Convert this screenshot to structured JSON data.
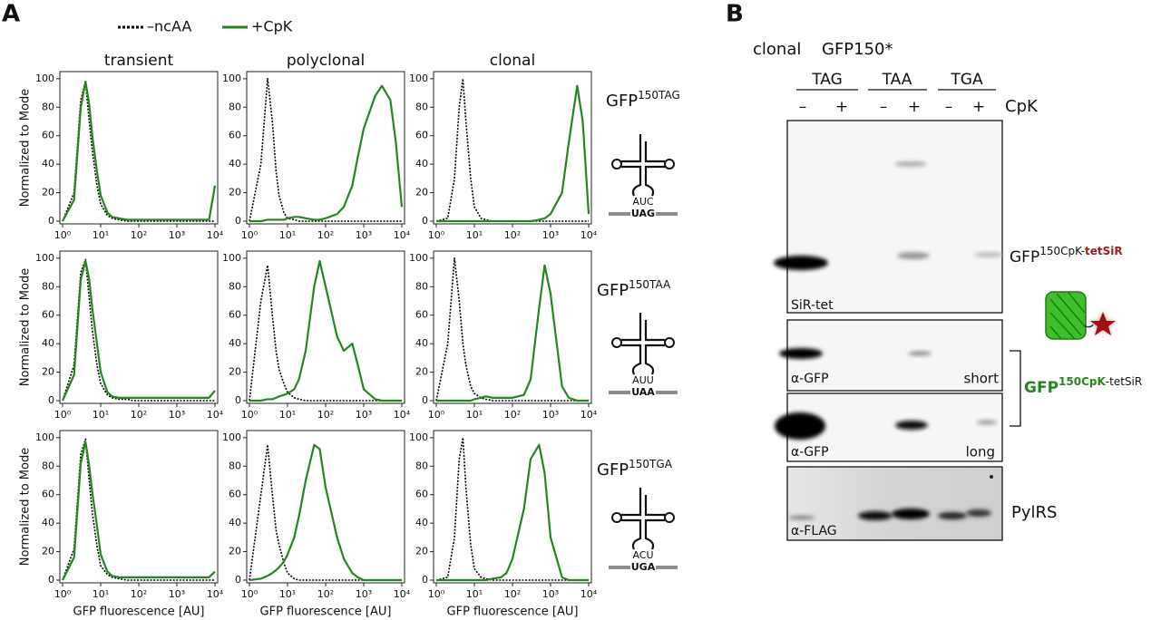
{
  "panel_a": {
    "label": "A",
    "rows": [
      {
        "gene": "GFP",
        "mutation": "150TAG",
        "anticodon": "AUC",
        "codon": "UAG"
      },
      {
        "gene": "GFP",
        "mutation": "150TAA",
        "anticodon": "AUU",
        "codon": "UAA"
      },
      {
        "gene": "GFP",
        "mutation": "150TGA",
        "anticodon": "ACU",
        "codon": "UGA"
      }
    ]
  },
  "panel_b": {
    "label": "B",
    "clone": "clonal",
    "construct": "GFP150*",
    "codons": [
      "TAG",
      "TAA",
      "TGA"
    ],
    "lanes": [
      "–",
      "+",
      "–",
      "+",
      "–",
      "+"
    ],
    "treatment": "CpK",
    "blots": [
      {
        "stain": "SiR-tet"
      },
      {
        "stain": "α-GFP",
        "exposure": "short"
      },
      {
        "stain": "α-GFP",
        "exposure": "long"
      },
      {
        "stain": "α-FLAG"
      }
    ],
    "product": {
      "name": "GFP",
      "superscript": "150CpK-",
      "highlight": "tetSiR"
    },
    "gfp_label": {
      "name": "GFP",
      "superscript": "150CpK",
      "suffix": "-tetSiR"
    },
    "pylrs": "PylRS"
  },
  "chart_data": [
    {
      "type": "line",
      "title": "transient",
      "ylabel": "Normalized to Mode",
      "xscale": "log",
      "x": [
        1,
        2,
        3,
        4,
        5,
        6,
        8,
        10,
        15,
        20,
        30,
        50,
        70,
        100,
        200,
        300,
        500,
        700,
        1000,
        2000,
        3000,
        5000,
        7000,
        10000
      ],
      "xlim": [
        1,
        10000
      ],
      "ylim": [
        0,
        105
      ],
      "xticks": [
        {
          "value": 1,
          "label": "10⁰"
        },
        {
          "value": 10,
          "label": "10¹"
        },
        {
          "value": 100,
          "label": "10²"
        },
        {
          "value": 1000,
          "label": "10³"
        },
        {
          "value": 10000,
          "label": "10⁴"
        }
      ],
      "yticks": [
        0,
        20,
        40,
        60,
        80,
        100
      ],
      "series": [
        {
          "name": "–ncAA",
          "color": "#000000",
          "style": "dotted",
          "values": [
            0,
            20,
            85,
            98,
            70,
            50,
            25,
            12,
            4,
            2,
            1,
            0,
            0,
            0,
            0,
            0,
            0,
            0,
            0,
            0,
            0,
            0,
            0,
            0
          ]
        },
        {
          "name": "+CpK",
          "color": "#25861f",
          "style": "solid",
          "values": [
            0,
            15,
            80,
            98,
            82,
            60,
            35,
            18,
            6,
            3,
            2,
            1,
            1,
            1,
            1,
            1,
            1,
            1,
            1,
            1,
            1,
            1,
            1,
            25
          ]
        }
      ]
    },
    {
      "type": "line",
      "title": "polyclonal",
      "xscale": "log",
      "x": [
        1,
        2,
        3,
        4,
        5,
        6,
        8,
        10,
        15,
        20,
        30,
        50,
        70,
        100,
        200,
        300,
        500,
        700,
        1000,
        2000,
        3000,
        5000,
        7000,
        10000
      ],
      "xlim": [
        1,
        10000
      ],
      "ylim": [
        0,
        105
      ],
      "xticks": [
        {
          "value": 1,
          "label": "10⁰"
        },
        {
          "value": 10,
          "label": "10¹"
        },
        {
          "value": 100,
          "label": "10²"
        },
        {
          "value": 1000,
          "label": "10³"
        },
        {
          "value": 10000,
          "label": "10⁴"
        }
      ],
      "yticks": [
        0,
        20,
        40,
        60,
        80,
        100
      ],
      "series": [
        {
          "color": "#000000",
          "style": "dotted",
          "values": [
            0,
            40,
            100,
            70,
            35,
            18,
            6,
            2,
            1,
            0,
            0,
            0,
            0,
            0,
            0,
            0,
            0,
            0,
            0,
            0,
            0,
            0,
            0,
            0
          ]
        },
        {
          "color": "#25861f",
          "style": "solid",
          "values": [
            0,
            0,
            1,
            1,
            1,
            1,
            1,
            2,
            3,
            3,
            2,
            1,
            1,
            2,
            5,
            10,
            25,
            45,
            65,
            88,
            95,
            85,
            55,
            10
          ]
        }
      ]
    },
    {
      "type": "line",
      "title": "clonal",
      "xscale": "log",
      "x": [
        1,
        2,
        3,
        4,
        5,
        6,
        8,
        10,
        15,
        20,
        30,
        50,
        70,
        100,
        200,
        300,
        500,
        700,
        1000,
        2000,
        3000,
        5000,
        7000,
        10000
      ],
      "xlim": [
        1,
        10000
      ],
      "ylim": [
        0,
        105
      ],
      "xticks": [
        {
          "value": 1,
          "label": "10⁰"
        },
        {
          "value": 10,
          "label": "10¹"
        },
        {
          "value": 100,
          "label": "10²"
        },
        {
          "value": 1000,
          "label": "10³"
        },
        {
          "value": 10000,
          "label": "10⁴"
        }
      ],
      "yticks": [
        0,
        20,
        40,
        60,
        80,
        100
      ],
      "series": [
        {
          "color": "#000000",
          "style": "dotted",
          "values": [
            0,
            2,
            30,
            80,
            100,
            70,
            30,
            10,
            2,
            1,
            0,
            0,
            0,
            0,
            0,
            0,
            0,
            0,
            0,
            0,
            0,
            0,
            0,
            0
          ]
        },
        {
          "color": "#25861f",
          "style": "solid",
          "values": [
            0,
            0,
            0,
            0,
            0,
            0,
            0,
            0,
            0,
            0,
            0,
            0,
            0,
            0,
            0,
            0,
            1,
            2,
            5,
            20,
            55,
            95,
            70,
            5
          ]
        }
      ]
    },
    {
      "type": "line",
      "ylabel": "Normalized to Mode",
      "xscale": "log",
      "x": [
        1,
        2,
        3,
        4,
        5,
        6,
        8,
        10,
        15,
        20,
        30,
        50,
        70,
        100,
        200,
        300,
        500,
        700,
        1000,
        2000,
        3000,
        5000,
        7000,
        10000
      ],
      "xlim": [
        1,
        10000
      ],
      "ylim": [
        0,
        105
      ],
      "xticks": [
        {
          "value": 1,
          "label": "10⁰"
        },
        {
          "value": 10,
          "label": "10¹"
        },
        {
          "value": 100,
          "label": "10²"
        },
        {
          "value": 1000,
          "label": "10³"
        },
        {
          "value": 10000,
          "label": "10⁴"
        }
      ],
      "yticks": [
        0,
        20,
        40,
        60,
        80,
        100
      ],
      "series": [
        {
          "color": "#000000",
          "style": "dotted",
          "values": [
            0,
            25,
            90,
            99,
            72,
            50,
            25,
            12,
            4,
            2,
            1,
            1,
            0,
            0,
            0,
            0,
            0,
            0,
            0,
            0,
            0,
            0,
            0,
            0
          ]
        },
        {
          "color": "#25861f",
          "style": "solid",
          "values": [
            0,
            18,
            85,
            98,
            85,
            65,
            40,
            20,
            6,
            3,
            2,
            2,
            2,
            2,
            2,
            2,
            2,
            2,
            2,
            2,
            2,
            2,
            2,
            7
          ]
        }
      ]
    },
    {
      "type": "line",
      "xscale": "log",
      "x": [
        1,
        2,
        3,
        4,
        5,
        6,
        8,
        10,
        15,
        20,
        30,
        50,
        70,
        100,
        200,
        300,
        500,
        700,
        1000,
        2000,
        3000,
        5000,
        7000,
        10000
      ],
      "xlim": [
        1,
        10000
      ],
      "ylim": [
        0,
        105
      ],
      "xticks": [
        {
          "value": 1,
          "label": "10⁰"
        },
        {
          "value": 10,
          "label": "10¹"
        },
        {
          "value": 100,
          "label": "10²"
        },
        {
          "value": 1000,
          "label": "10³"
        },
        {
          "value": 10000,
          "label": "10⁴"
        }
      ],
      "yticks": [
        0,
        20,
        40,
        60,
        80,
        100
      ],
      "series": [
        {
          "color": "#000000",
          "style": "dotted",
          "values": [
            0,
            70,
            95,
            60,
            35,
            22,
            12,
            6,
            2,
            1,
            0,
            0,
            0,
            0,
            0,
            0,
            0,
            0,
            0,
            0,
            0,
            0,
            0,
            0
          ]
        },
        {
          "color": "#25861f",
          "style": "solid",
          "values": [
            0,
            0,
            1,
            1,
            2,
            3,
            4,
            5,
            8,
            15,
            35,
            80,
            98,
            80,
            45,
            35,
            40,
            25,
            8,
            1,
            0,
            0,
            0,
            0
          ]
        }
      ]
    },
    {
      "type": "line",
      "xscale": "log",
      "x": [
        1,
        2,
        3,
        4,
        5,
        6,
        8,
        10,
        15,
        20,
        30,
        50,
        70,
        100,
        200,
        300,
        500,
        700,
        1000,
        2000,
        3000,
        5000,
        7000,
        10000
      ],
      "xlim": [
        1,
        10000
      ],
      "ylim": [
        0,
        105
      ],
      "xticks": [
        {
          "value": 1,
          "label": "10⁰"
        },
        {
          "value": 10,
          "label": "10¹"
        },
        {
          "value": 100,
          "label": "10²"
        },
        {
          "value": 1000,
          "label": "10³"
        },
        {
          "value": 10000,
          "label": "10⁴"
        }
      ],
      "yticks": [
        0,
        20,
        40,
        60,
        80,
        100
      ],
      "series": [
        {
          "color": "#000000",
          "style": "dotted",
          "values": [
            0,
            40,
            100,
            70,
            40,
            25,
            10,
            5,
            2,
            1,
            0,
            0,
            0,
            0,
            0,
            0,
            0,
            0,
            0,
            0,
            0,
            0,
            0,
            0
          ]
        },
        {
          "color": "#25861f",
          "style": "solid",
          "values": [
            0,
            0,
            0,
            0,
            0,
            0,
            0,
            1,
            2,
            3,
            2,
            2,
            2,
            2,
            4,
            15,
            65,
            95,
            75,
            10,
            2,
            0,
            0,
            0
          ]
        }
      ]
    },
    {
      "type": "line",
      "ylabel": "Normalized to Mode",
      "xlabel": "GFP fluorescence  [AU]",
      "xscale": "log",
      "x": [
        1,
        2,
        3,
        4,
        5,
        6,
        8,
        10,
        15,
        20,
        30,
        50,
        70,
        100,
        200,
        300,
        500,
        700,
        1000,
        2000,
        3000,
        5000,
        7000,
        10000
      ],
      "xlim": [
        1,
        10000
      ],
      "ylim": [
        0,
        105
      ],
      "xticks": [
        {
          "value": 1,
          "label": "10⁰"
        },
        {
          "value": 10,
          "label": "10¹"
        },
        {
          "value": 100,
          "label": "10²"
        },
        {
          "value": 1000,
          "label": "10³"
        },
        {
          "value": 10000,
          "label": "10⁴"
        }
      ],
      "yticks": [
        0,
        20,
        40,
        60,
        80,
        100
      ],
      "series": [
        {
          "color": "#000000",
          "style": "dotted",
          "values": [
            0,
            22,
            88,
            99,
            70,
            48,
            24,
            10,
            4,
            2,
            1,
            0,
            0,
            0,
            0,
            0,
            0,
            0,
            0,
            0,
            0,
            0,
            0,
            0
          ]
        },
        {
          "color": "#25861f",
          "style": "solid",
          "values": [
            0,
            16,
            82,
            97,
            80,
            62,
            38,
            18,
            6,
            3,
            2,
            2,
            2,
            2,
            2,
            2,
            2,
            2,
            2,
            2,
            2,
            2,
            2,
            6
          ]
        }
      ]
    },
    {
      "type": "line",
      "xlabel": "GFP fluorescence  [AU]",
      "xscale": "log",
      "x": [
        1,
        2,
        3,
        4,
        5,
        6,
        8,
        10,
        15,
        20,
        30,
        50,
        70,
        100,
        200,
        300,
        500,
        700,
        1000,
        2000,
        3000,
        5000,
        7000,
        10000
      ],
      "xlim": [
        1,
        10000
      ],
      "ylim": [
        0,
        105
      ],
      "xticks": [
        {
          "value": 1,
          "label": "10⁰"
        },
        {
          "value": 10,
          "label": "10¹"
        },
        {
          "value": 100,
          "label": "10²"
        },
        {
          "value": 1000,
          "label": "10³"
        },
        {
          "value": 10000,
          "label": "10⁴"
        }
      ],
      "yticks": [
        0,
        20,
        40,
        60,
        80,
        100
      ],
      "series": [
        {
          "color": "#000000",
          "style": "dotted",
          "values": [
            0,
            60,
            95,
            60,
            35,
            25,
            12,
            5,
            1,
            0,
            0,
            0,
            0,
            0,
            0,
            0,
            0,
            0,
            0,
            0,
            0,
            0,
            0,
            0
          ]
        },
        {
          "color": "#25861f",
          "style": "solid",
          "values": [
            0,
            1,
            3,
            5,
            7,
            9,
            13,
            18,
            30,
            45,
            70,
            95,
            92,
            65,
            30,
            15,
            5,
            2,
            0,
            0,
            0,
            0,
            0,
            0
          ]
        }
      ]
    },
    {
      "type": "line",
      "xlabel": "GFP fluorescence  [AU]",
      "xscale": "log",
      "x": [
        1,
        2,
        3,
        4,
        5,
        6,
        8,
        10,
        15,
        20,
        30,
        50,
        70,
        100,
        200,
        300,
        500,
        700,
        1000,
        2000,
        3000,
        5000,
        7000,
        10000
      ],
      "xlim": [
        1,
        10000
      ],
      "ylim": [
        0,
        105
      ],
      "xticks": [
        {
          "value": 1,
          "label": "10⁰"
        },
        {
          "value": 10,
          "label": "10¹"
        },
        {
          "value": 100,
          "label": "10²"
        },
        {
          "value": 1000,
          "label": "10³"
        },
        {
          "value": 10000,
          "label": "10⁴"
        }
      ],
      "yticks": [
        0,
        20,
        40,
        60,
        80,
        100
      ],
      "series": [
        {
          "color": "#000000",
          "style": "dotted",
          "values": [
            0,
            2,
            30,
            85,
            100,
            65,
            25,
            8,
            2,
            1,
            0,
            0,
            0,
            0,
            0,
            0,
            0,
            0,
            0,
            0,
            0,
            0,
            0,
            0
          ]
        },
        {
          "color": "#25861f",
          "style": "solid",
          "values": [
            0,
            0,
            0,
            0,
            0,
            0,
            0,
            0,
            0,
            0,
            1,
            2,
            5,
            15,
            50,
            85,
            95,
            75,
            30,
            2,
            0,
            0,
            0,
            0
          ]
        }
      ]
    }
  ]
}
